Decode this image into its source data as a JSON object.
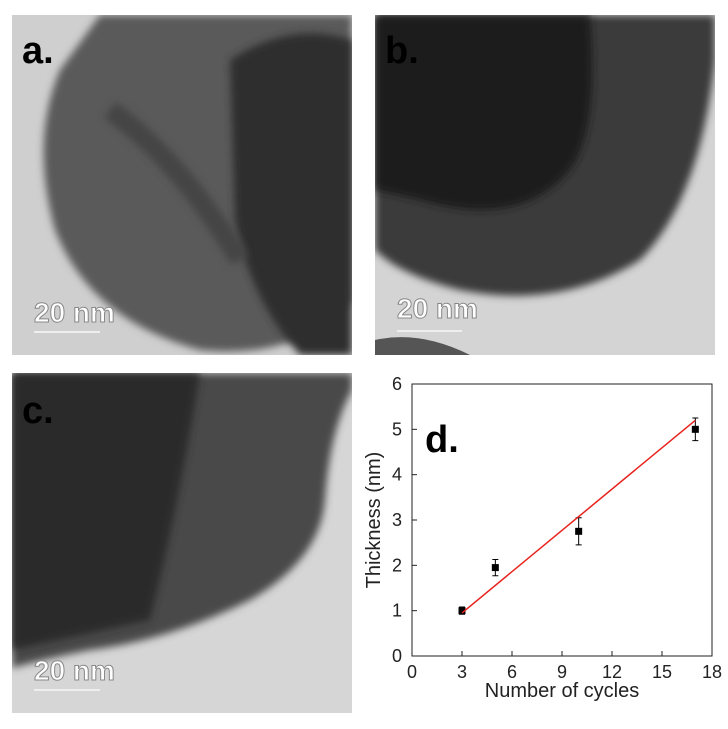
{
  "panels": [
    {
      "label": "a.",
      "scale_bar": "20 nm"
    },
    {
      "label": "b.",
      "scale_bar": "20 nm"
    },
    {
      "label": "c.",
      "scale_bar": "20 nm"
    }
  ],
  "chart_data": {
    "type": "scatter",
    "annotation": "d.",
    "x_label": "Number of cycles",
    "y_label": "Thickness (nm)",
    "xlim": [
      0,
      18
    ],
    "xticks": [
      0,
      3,
      6,
      9,
      12,
      15,
      18
    ],
    "ylim": [
      0,
      6
    ],
    "yticks": [
      0,
      1,
      2,
      3,
      4,
      5,
      6
    ],
    "series": [
      {
        "type": "scatter",
        "color": "#000000",
        "x": [
          3,
          5,
          10,
          17
        ],
        "values": [
          1.0,
          1.95,
          2.75,
          5.0
        ],
        "errors": [
          0.08,
          0.18,
          0.3,
          0.25
        ]
      },
      {
        "type": "line",
        "color": "#e8221c",
        "x": [
          3,
          17
        ],
        "values": [
          0.95,
          5.2
        ]
      }
    ]
  }
}
